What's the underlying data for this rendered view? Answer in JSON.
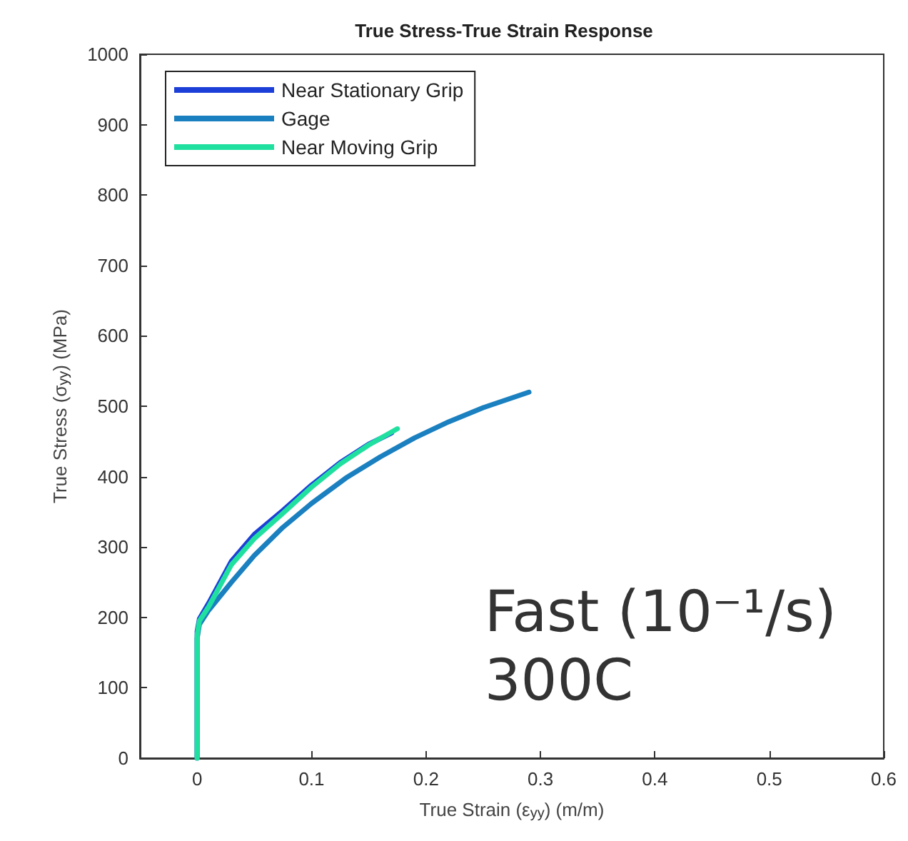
{
  "chart_data": {
    "type": "line",
    "title": "True Stress-True Strain Response",
    "xlabel": "True Strain (ε$_{yy}$) (m/m)",
    "ylabel": "True Stress (σ$_{yy}$) (MPa)",
    "xlim": [
      -0.05,
      0.6
    ],
    "xticks": [
      0,
      0.1,
      0.2,
      0.3,
      0.4,
      0.5,
      0.6
    ],
    "ylim": [
      0,
      1000
    ],
    "yticks": [
      0,
      100,
      200,
      300,
      400,
      500,
      600,
      700,
      800,
      900,
      1000
    ],
    "grid": false,
    "legend": "top left",
    "marker": "none",
    "line_style": "solid",
    "annotations": [
      "Fast (10⁻¹/s)\n300C"
    ],
    "series": [
      {
        "name": "Near Stationary Grip",
        "color": "#1c3fd8",
        "x": [
          0,
          0,
          0.002,
          0.01,
          0.03,
          0.05,
          0.075,
          0.1,
          0.125,
          0.15,
          0.17
        ],
        "values": [
          0,
          180,
          198,
          220,
          280,
          318,
          352,
          388,
          420,
          446,
          462
        ]
      },
      {
        "name": "Gage",
        "color": "#1a80c0",
        "x": [
          0,
          0,
          0,
          0.002,
          0.01,
          0.03,
          0.05,
          0.075,
          0.1,
          0.13,
          0.16,
          0.19,
          0.22,
          0.25,
          0.29
        ],
        "values": [
          0,
          100,
          170,
          190,
          210,
          250,
          288,
          328,
          362,
          398,
          428,
          455,
          478,
          498,
          520
        ]
      },
      {
        "name": "Near Moving Grip",
        "color": "#20e0a0",
        "x": [
          0,
          0,
          0,
          0.002,
          0.01,
          0.03,
          0.05,
          0.075,
          0.1,
          0.125,
          0.15,
          0.175
        ],
        "values": [
          0,
          100,
          175,
          195,
          215,
          275,
          312,
          348,
          385,
          418,
          445,
          468
        ]
      }
    ]
  }
}
